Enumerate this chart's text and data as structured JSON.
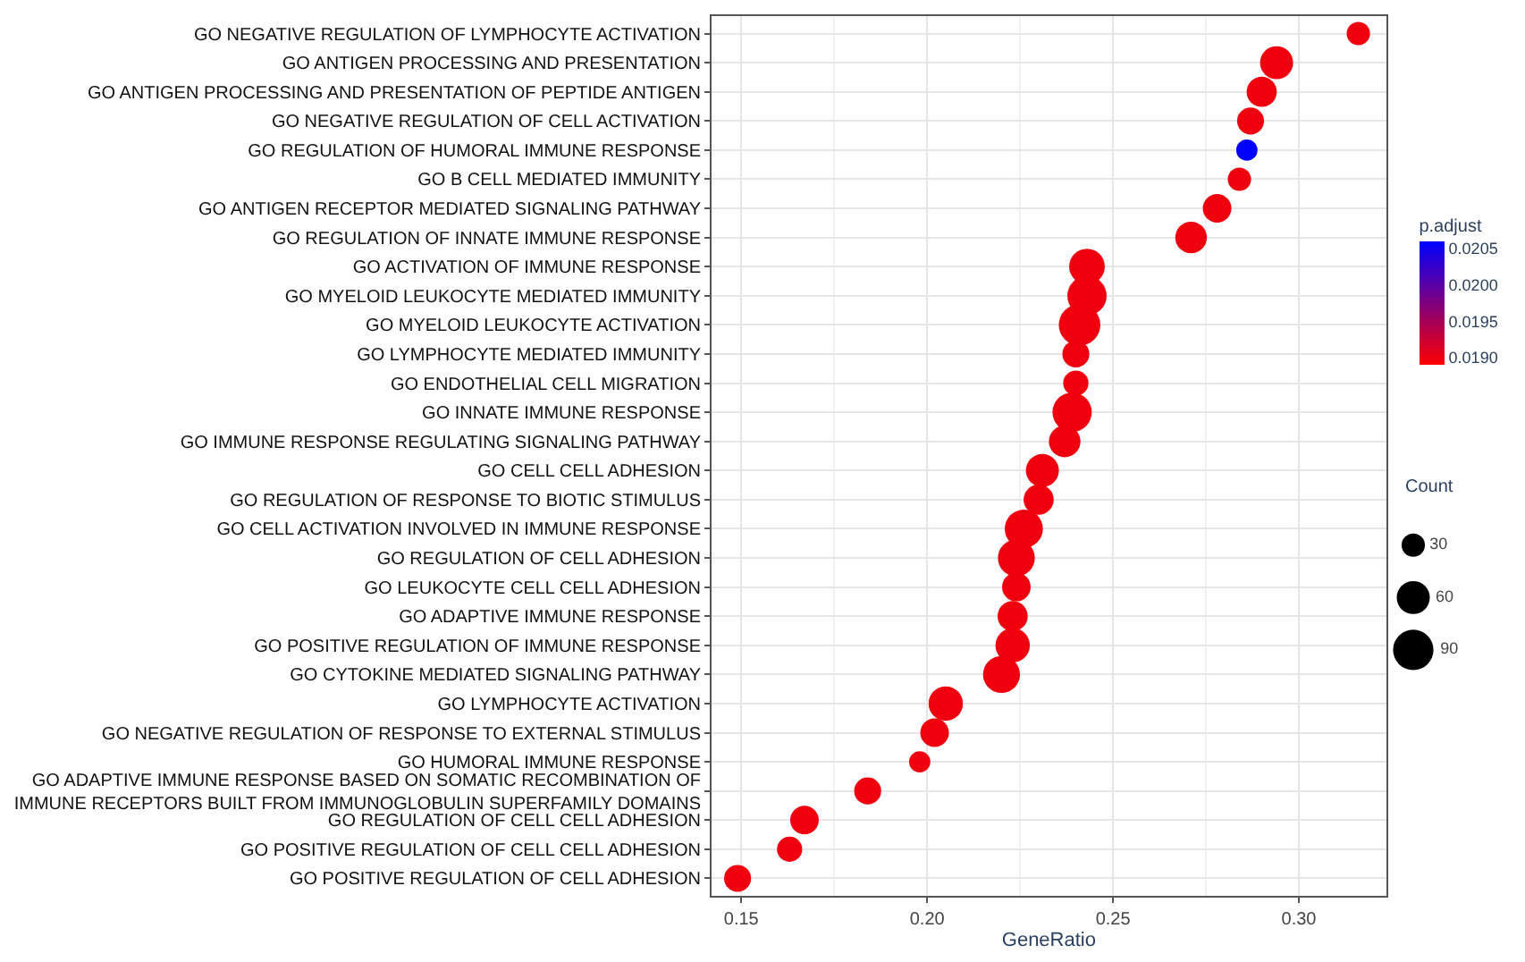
{
  "chart_data": {
    "type": "bubble",
    "xlabel": "GeneRatio",
    "clabel": "p.adjust",
    "legend_title": "Count",
    "categories": [
      "GO NEGATIVE REGULATION OF LYMPHOCYTE ACTIVATION",
      "GO ANTIGEN PROCESSING AND PRESENTATION",
      "GO ANTIGEN PROCESSING AND PRESENTATION OF PEPTIDE ANTIGEN",
      "GO NEGATIVE REGULATION OF CELL ACTIVATION",
      "GO REGULATION OF HUMORAL IMMUNE RESPONSE",
      "GO B CELL MEDIATED IMMUNITY",
      "GO ANTIGEN RECEPTOR MEDIATED SIGNALING PATHWAY",
      "GO REGULATION OF INNATE IMMUNE RESPONSE",
      "GO ACTIVATION OF IMMUNE RESPONSE",
      "GO MYELOID LEUKOCYTE MEDIATED IMMUNITY",
      "GO MYELOID LEUKOCYTE ACTIVATION",
      "GO LYMPHOCYTE MEDIATED IMMUNITY",
      "GO ENDOTHELIAL CELL MIGRATION",
      "GO INNATE IMMUNE RESPONSE",
      "GO IMMUNE RESPONSE REGULATING SIGNALING PATHWAY",
      "GO CELL CELL ADHESION",
      "GO REGULATION OF RESPONSE TO BIOTIC STIMULUS",
      "GO CELL ACTIVATION INVOLVED IN IMMUNE RESPONSE",
      "GO REGULATION OF CELL ADHESION",
      "GO LEUKOCYTE CELL CELL ADHESION",
      "GO ADAPTIVE IMMUNE RESPONSE",
      "GO POSITIVE REGULATION OF IMMUNE RESPONSE",
      "GO CYTOKINE MEDIATED SIGNALING PATHWAY",
      "GO LYMPHOCYTE ACTIVATION",
      "GO NEGATIVE REGULATION OF RESPONSE TO EXTERNAL STIMULUS",
      "GO HUMORAL IMMUNE RESPONSE",
      "GO ADAPTIVE IMMUNE RESPONSE BASED ON SOMATIC RECOMBINATION OF IMMUNE RECEPTORS BUILT FROM IMMUNOGLOBULIN SUPERFAMILY DOMAINS",
      "GO REGULATION OF CELL CELL ADHESION",
      "GO POSITIVE REGULATION OF CELL CELL ADHESION",
      "GO POSITIVE REGULATION OF CELL ADHESION"
    ],
    "orientation": "horizontal",
    "values": [
      0.316,
      0.294,
      0.29,
      0.287,
      0.286,
      0.284,
      0.278,
      0.271,
      0.243,
      0.243,
      0.241,
      0.24,
      0.24,
      0.239,
      0.237,
      0.231,
      0.23,
      0.226,
      0.224,
      0.224,
      0.223,
      0.223,
      0.22,
      0.205,
      0.202,
      0.198,
      0.184,
      0.167,
      0.163,
      0.149
    ],
    "sizes": [
      30,
      60,
      50,
      40,
      25,
      30,
      45,
      55,
      70,
      85,
      95,
      40,
      35,
      85,
      55,
      60,
      50,
      80,
      75,
      45,
      50,
      65,
      75,
      65,
      45,
      25,
      40,
      45,
      35,
      40
    ],
    "cvalues": [
      0.019,
      0.019,
      0.019,
      0.019,
      0.0206,
      0.019,
      0.019,
      0.019,
      0.019,
      0.019,
      0.019,
      0.019,
      0.019,
      0.019,
      0.019,
      0.019,
      0.019,
      0.019,
      0.019,
      0.019,
      0.019,
      0.019,
      0.019,
      0.019,
      0.019,
      0.019,
      0.019,
      0.019,
      0.019,
      0.019
    ],
    "clim": [
      0.0189,
      0.0206
    ],
    "cticks": [
      {
        "value": 0.019,
        "label": "0.0190"
      },
      {
        "value": 0.0195,
        "label": "0.0195"
      },
      {
        "value": 0.02,
        "label": "0.0200"
      },
      {
        "value": 0.0205,
        "label": "0.0205"
      }
    ],
    "size_legend": [
      30,
      60,
      90
    ],
    "xlim": [
      0.142,
      0.3235
    ],
    "xticks": [
      {
        "value": 0.15,
        "label": "0.15"
      },
      {
        "value": 0.2,
        "label": "0.20"
      },
      {
        "value": 0.25,
        "label": "0.25"
      },
      {
        "value": 0.3,
        "label": "0.30"
      }
    ],
    "grid": true
  }
}
